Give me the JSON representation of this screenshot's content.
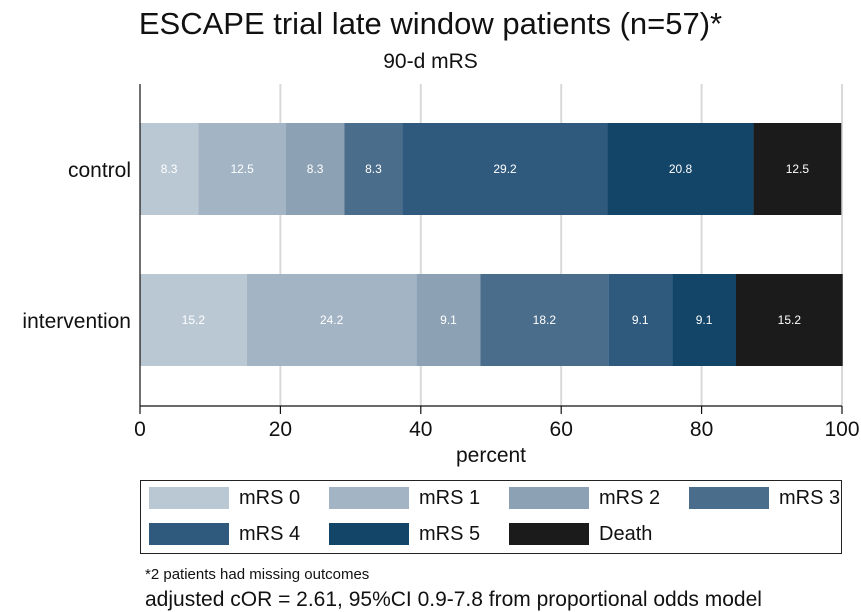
{
  "title": "ESCAPE trial late window patients (n=57)*",
  "subtitle": "90-d mRS",
  "footnote": "*2 patients had missing outcomes",
  "footnote2": "adjusted cOR = 2.61, 95%CI 0.9-7.8 from proportional odds model",
  "chart_data": {
    "type": "bar",
    "orientation": "horizontal",
    "stacked": true,
    "categories": [
      "control",
      "intervention"
    ],
    "series": [
      {
        "name": "mRS 0",
        "color": "#bac8d4",
        "values": [
          8.3,
          15.2
        ]
      },
      {
        "name": "mRS 1",
        "color": "#a3b4c4",
        "values": [
          12.5,
          24.2
        ]
      },
      {
        "name": "mRS 2",
        "color": "#8ca1b4",
        "values": [
          8.3,
          9.1
        ]
      },
      {
        "name": "mRS 3",
        "color": "#4b6d8c",
        "values": [
          8.3,
          18.2
        ]
      },
      {
        "name": "mRS 4",
        "color": "#2f5a7e",
        "values": [
          29.2,
          9.1
        ]
      },
      {
        "name": "mRS 5",
        "color": "#124568",
        "values": [
          20.8,
          9.1
        ]
      },
      {
        "name": "Death",
        "color": "#1b1b1b",
        "values": [
          12.5,
          15.2
        ]
      }
    ],
    "xlabel": "percent",
    "ylabel": "",
    "xlim": [
      0,
      100
    ],
    "xticks": [
      0,
      20,
      40,
      60,
      80,
      100
    ],
    "grid": true,
    "legend_position": "bottom"
  }
}
